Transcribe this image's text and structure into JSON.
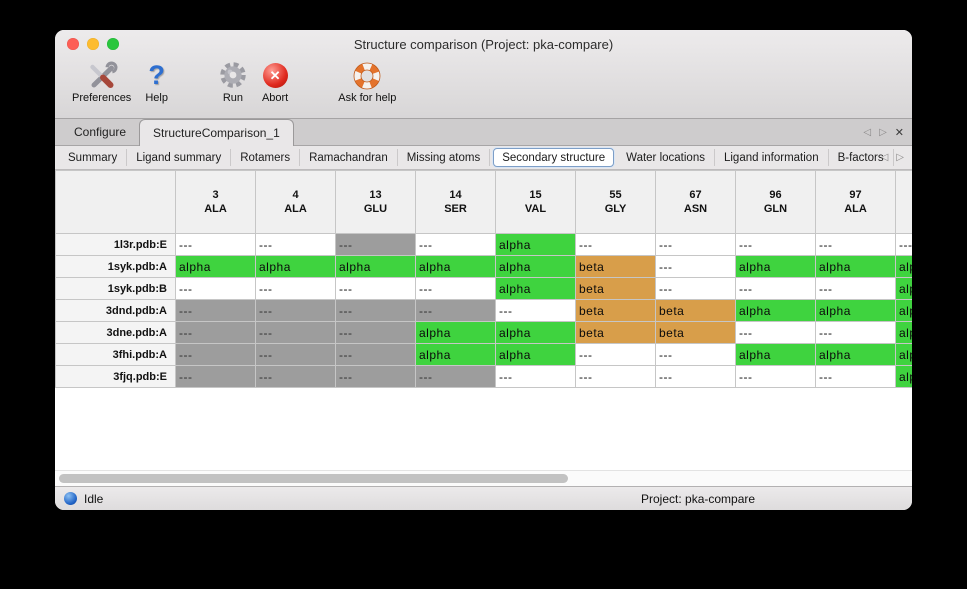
{
  "window": {
    "title": "Structure comparison (Project: pka-compare)"
  },
  "toolbar": {
    "groups": [
      {
        "items": [
          {
            "label": "Preferences",
            "icon": "tools-icon"
          },
          {
            "label": "Help",
            "icon": "question-icon"
          }
        ]
      },
      {
        "items": [
          {
            "label": "Run",
            "icon": "gear-icon"
          },
          {
            "label": "Abort",
            "icon": "abort-icon"
          }
        ]
      },
      {
        "items": [
          {
            "label": "Ask for help",
            "icon": "life-ring-icon"
          }
        ]
      }
    ]
  },
  "primary_tabs": {
    "tabs": [
      {
        "label": "Configure",
        "selected": false
      },
      {
        "label": "StructureComparison_1",
        "selected": true
      }
    ],
    "nav": {
      "left": "◁",
      "right": "▷",
      "close": "✕"
    }
  },
  "secondary_tabs": {
    "tabs": [
      {
        "label": "Summary",
        "selected": false
      },
      {
        "label": "Ligand summary",
        "selected": false
      },
      {
        "label": "Rotamers",
        "selected": false
      },
      {
        "label": "Ramachandran",
        "selected": false
      },
      {
        "label": "Missing atoms",
        "selected": false
      },
      {
        "label": "Secondary structure",
        "selected": true
      },
      {
        "label": "Water locations",
        "selected": false
      },
      {
        "label": "Ligand information",
        "selected": false
      },
      {
        "label": "B-factors",
        "selected": false
      }
    ],
    "nav": {
      "left": "◁",
      "right": "▷"
    }
  },
  "table": {
    "columns": [
      {
        "number": "3",
        "residue": "ALA"
      },
      {
        "number": "4",
        "residue": "ALA"
      },
      {
        "number": "13",
        "residue": "GLU"
      },
      {
        "number": "14",
        "residue": "SER"
      },
      {
        "number": "15",
        "residue": "VAL"
      },
      {
        "number": "55",
        "residue": "GLY"
      },
      {
        "number": "67",
        "residue": "ASN"
      },
      {
        "number": "96",
        "residue": "GLN"
      },
      {
        "number": "97",
        "residue": "ALA"
      },
      {
        "number": "",
        "residue": ""
      }
    ],
    "rows": [
      {
        "name": "1l3r.pdb:E",
        "cells": [
          {
            "text": "---",
            "style": "blank"
          },
          {
            "text": "---",
            "style": "blank"
          },
          {
            "text": "---",
            "style": "missing"
          },
          {
            "text": "---",
            "style": "blank"
          },
          {
            "text": "alpha",
            "style": "alpha"
          },
          {
            "text": "---",
            "style": "blank"
          },
          {
            "text": "---",
            "style": "blank"
          },
          {
            "text": "---",
            "style": "blank"
          },
          {
            "text": "---",
            "style": "blank"
          },
          {
            "text": "---",
            "style": "blank"
          }
        ]
      },
      {
        "name": "1syk.pdb:A",
        "cells": [
          {
            "text": "alpha",
            "style": "alpha"
          },
          {
            "text": "alpha",
            "style": "alpha"
          },
          {
            "text": "alpha",
            "style": "alpha"
          },
          {
            "text": "alpha",
            "style": "alpha"
          },
          {
            "text": "alpha",
            "style": "alpha"
          },
          {
            "text": "beta",
            "style": "beta"
          },
          {
            "text": "---",
            "style": "blank"
          },
          {
            "text": "alpha",
            "style": "alpha"
          },
          {
            "text": "alpha",
            "style": "alpha"
          },
          {
            "text": "alpha",
            "style": "alpha"
          }
        ]
      },
      {
        "name": "1syk.pdb:B",
        "cells": [
          {
            "text": "---",
            "style": "blank"
          },
          {
            "text": "---",
            "style": "blank"
          },
          {
            "text": "---",
            "style": "blank"
          },
          {
            "text": "---",
            "style": "blank"
          },
          {
            "text": "alpha",
            "style": "alpha"
          },
          {
            "text": "beta",
            "style": "beta"
          },
          {
            "text": "---",
            "style": "blank"
          },
          {
            "text": "---",
            "style": "blank"
          },
          {
            "text": "---",
            "style": "blank"
          },
          {
            "text": "alpha",
            "style": "alpha"
          }
        ]
      },
      {
        "name": "3dnd.pdb:A",
        "cells": [
          {
            "text": "---",
            "style": "missing"
          },
          {
            "text": "---",
            "style": "missing"
          },
          {
            "text": "---",
            "style": "missing"
          },
          {
            "text": "---",
            "style": "missing"
          },
          {
            "text": "---",
            "style": "blank"
          },
          {
            "text": "beta",
            "style": "beta"
          },
          {
            "text": "beta",
            "style": "beta"
          },
          {
            "text": "alpha",
            "style": "alpha"
          },
          {
            "text": "alpha",
            "style": "alpha"
          },
          {
            "text": "alpha",
            "style": "alpha"
          }
        ]
      },
      {
        "name": "3dne.pdb:A",
        "cells": [
          {
            "text": "---",
            "style": "missing"
          },
          {
            "text": "---",
            "style": "missing"
          },
          {
            "text": "---",
            "style": "missing"
          },
          {
            "text": "alpha",
            "style": "alpha"
          },
          {
            "text": "alpha",
            "style": "alpha"
          },
          {
            "text": "beta",
            "style": "beta"
          },
          {
            "text": "beta",
            "style": "beta"
          },
          {
            "text": "---",
            "style": "blank"
          },
          {
            "text": "---",
            "style": "blank"
          },
          {
            "text": "alpha",
            "style": "alpha"
          }
        ]
      },
      {
        "name": "3fhi.pdb:A",
        "cells": [
          {
            "text": "---",
            "style": "missing"
          },
          {
            "text": "---",
            "style": "missing"
          },
          {
            "text": "---",
            "style": "missing"
          },
          {
            "text": "alpha",
            "style": "alpha"
          },
          {
            "text": "alpha",
            "style": "alpha"
          },
          {
            "text": "---",
            "style": "blank"
          },
          {
            "text": "---",
            "style": "blank"
          },
          {
            "text": "alpha",
            "style": "alpha"
          },
          {
            "text": "alpha",
            "style": "alpha"
          },
          {
            "text": "alpha",
            "style": "alpha"
          }
        ]
      },
      {
        "name": "3fjq.pdb:E",
        "cells": [
          {
            "text": "---",
            "style": "missing"
          },
          {
            "text": "---",
            "style": "missing"
          },
          {
            "text": "---",
            "style": "missing"
          },
          {
            "text": "---",
            "style": "missing"
          },
          {
            "text": "---",
            "style": "blank"
          },
          {
            "text": "---",
            "style": "blank"
          },
          {
            "text": "---",
            "style": "blank"
          },
          {
            "text": "---",
            "style": "blank"
          },
          {
            "text": "---",
            "style": "blank"
          },
          {
            "text": "alpha",
            "style": "alpha"
          }
        ]
      }
    ]
  },
  "statusbar": {
    "status": "Idle",
    "project": "Project: pka-compare"
  },
  "colors": {
    "blank": "#ffffff",
    "missing": "#9d9d9d",
    "alpha": "#3fd33f",
    "beta": "#d89e4a"
  }
}
